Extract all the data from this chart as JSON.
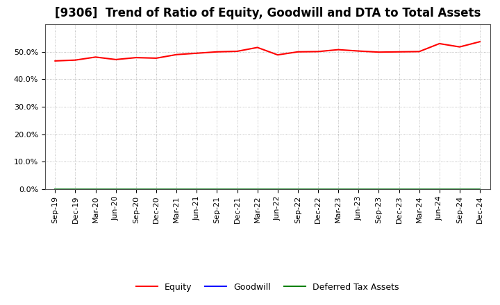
{
  "title": "[9306]  Trend of Ratio of Equity, Goodwill and DTA to Total Assets",
  "x_labels": [
    "Sep-19",
    "Dec-19",
    "Mar-20",
    "Jun-20",
    "Sep-20",
    "Dec-20",
    "Mar-21",
    "Jun-21",
    "Sep-21",
    "Dec-21",
    "Mar-22",
    "Jun-22",
    "Sep-22",
    "Dec-22",
    "Mar-23",
    "Jun-23",
    "Sep-23",
    "Dec-23",
    "Mar-24",
    "Jun-24",
    "Sep-24",
    "Dec-24"
  ],
  "equity": [
    0.467,
    0.47,
    0.481,
    0.472,
    0.479,
    0.477,
    0.49,
    0.495,
    0.5,
    0.502,
    0.516,
    0.489,
    0.5,
    0.501,
    0.508,
    0.503,
    0.499,
    0.5,
    0.501,
    0.53,
    0.518,
    0.537
  ],
  "goodwill": [
    0.0,
    0.0,
    0.0,
    0.0,
    0.0,
    0.0,
    0.0,
    0.0,
    0.0,
    0.0,
    0.0,
    0.0,
    0.0,
    0.0,
    0.0,
    0.0,
    0.0,
    0.0,
    0.0,
    0.0,
    0.0,
    0.0
  ],
  "dta": [
    0.0,
    0.0,
    0.0,
    0.0,
    0.0,
    0.0,
    0.0,
    0.0,
    0.0,
    0.0,
    0.0,
    0.0,
    0.0,
    0.0,
    0.0,
    0.0,
    0.0,
    0.0,
    0.0,
    0.0,
    0.0,
    0.0
  ],
  "equity_color": "#FF0000",
  "goodwill_color": "#0000FF",
  "dta_color": "#008000",
  "ylim": [
    0.0,
    0.6
  ],
  "yticks": [
    0.0,
    0.1,
    0.2,
    0.3,
    0.4,
    0.5
  ],
  "background_color": "#FFFFFF",
  "plot_bg_color": "#FFFFFF",
  "grid_color": "#AAAAAA",
  "title_fontsize": 12,
  "tick_fontsize": 8,
  "legend_labels": [
    "Equity",
    "Goodwill",
    "Deferred Tax Assets"
  ]
}
